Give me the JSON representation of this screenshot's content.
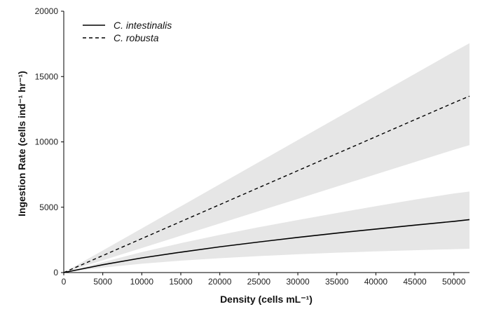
{
  "chart_data": {
    "type": "line",
    "title": "",
    "xlabel": "Density (cells mL⁻¹)",
    "ylabel": "Ingestion Rate (cells ind⁻¹ hr⁻¹)",
    "xlim": [
      0,
      52000
    ],
    "ylim": [
      0,
      20000
    ],
    "x_ticks": [
      0,
      5000,
      10000,
      15000,
      20000,
      25000,
      30000,
      35000,
      40000,
      45000,
      50000
    ],
    "y_ticks": [
      0,
      5000,
      10000,
      15000,
      20000
    ],
    "x_tick_labels": [
      "0",
      "5000",
      "10000",
      "15000",
      "20000",
      "25000",
      "30000",
      "35000",
      "40000",
      "45000",
      "50000"
    ],
    "y_tick_labels": [
      "0",
      "5000",
      "10000",
      "15000",
      "20000"
    ],
    "grid": false,
    "legend_position": "top-left",
    "x": [
      0,
      5000,
      10000,
      15000,
      20000,
      25000,
      30000,
      35000,
      40000,
      45000,
      50000,
      52000
    ],
    "series": [
      {
        "name": "C. intestinalis",
        "line_style": "solid",
        "color": "#000000",
        "values": [
          0,
          600,
          1120,
          1560,
          1970,
          2340,
          2690,
          3020,
          3330,
          3630,
          3920,
          4050
        ],
        "lower": [
          0,
          380,
          680,
          910,
          1100,
          1260,
          1400,
          1520,
          1620,
          1710,
          1790,
          1820
        ],
        "upper": [
          0,
          800,
          1570,
          2250,
          2880,
          3470,
          4020,
          4560,
          5080,
          5580,
          6050,
          6200
        ]
      },
      {
        "name": "C. robusta",
        "line_style": "dashed",
        "color": "#000000",
        "values": [
          0,
          1300,
          2600,
          3900,
          5200,
          6500,
          7800,
          9100,
          10400,
          11700,
          13000,
          13500
        ],
        "lower": [
          0,
          940,
          1880,
          2820,
          3760,
          4700,
          5640,
          6580,
          7520,
          8460,
          9400,
          9750
        ],
        "upper": [
          0,
          1690,
          3380,
          5070,
          6760,
          8450,
          10140,
          11830,
          13520,
          15210,
          16900,
          17550
        ]
      }
    ],
    "band_color": "#e6e6e6"
  }
}
